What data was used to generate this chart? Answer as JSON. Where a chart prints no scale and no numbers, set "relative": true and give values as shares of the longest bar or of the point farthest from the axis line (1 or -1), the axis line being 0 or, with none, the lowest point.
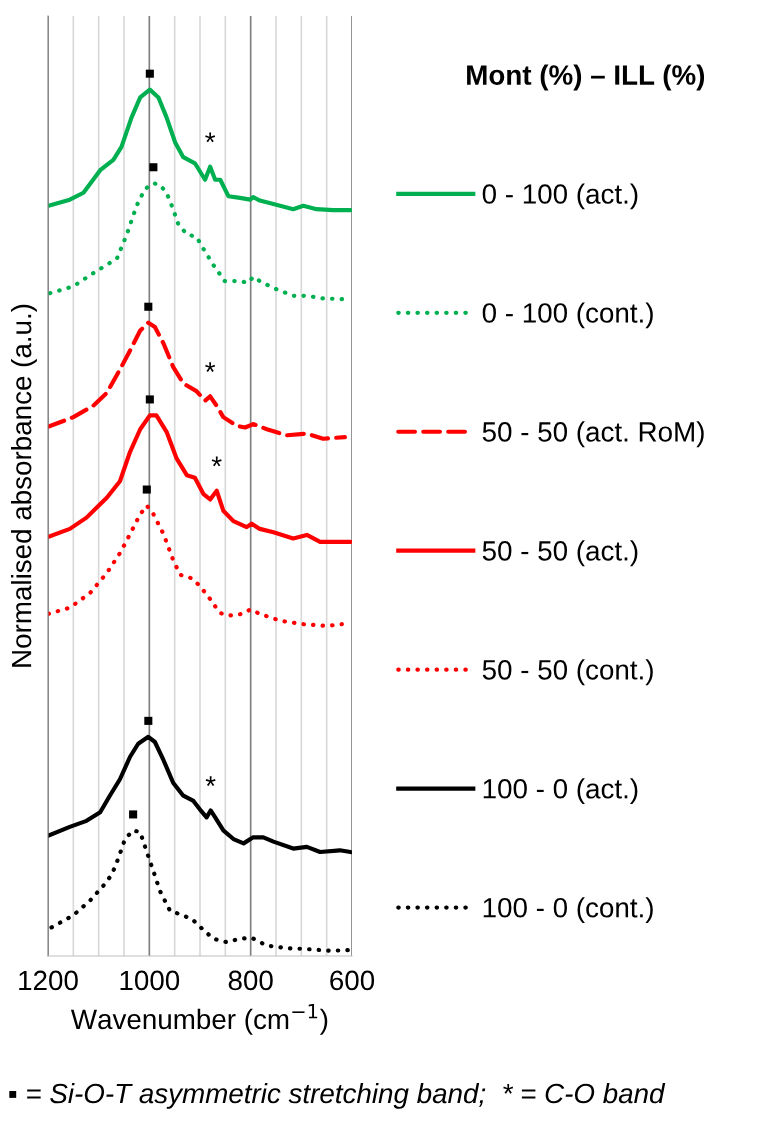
{
  "chart_data": {
    "type": "line",
    "relative": true,
    "xlabel": "Wavenumber (cm$^{−1}$)",
    "ylabel": "Normalised absorbance (a.u.)",
    "legend_title": "Mont (%) – ILL (%)",
    "legend": "right",
    "grid": "x",
    "xlim": [
      1200,
      600
    ],
    "xticks": [
      1200,
      {
        "value": 1150,
        "label": null
      },
      {
        "value": 1100,
        "label": null
      },
      {
        "value": 1050,
        "label": null
      },
      1000,
      {
        "value": 950,
        "label": null
      },
      {
        "value": 900,
        "label": null
      },
      {
        "value": 850,
        "label": null
      },
      800,
      {
        "value": 750,
        "label": null
      },
      {
        "value": 700,
        "label": null
      },
      {
        "value": 650,
        "label": null
      },
      600
    ],
    "series": [
      {
        "name": "0 - 100 (act.)",
        "color": "#00b050",
        "line_style": "solid",
        "x": [
          1199,
          1157,
          1130,
          1097,
          1071,
          1055,
          1035,
          1018,
          999,
          982,
          966,
          949,
          933,
          910,
          890,
          880,
          870,
          860,
          844,
          821,
          801,
          795,
          782,
          755,
          716,
          696,
          670,
          637,
          603
        ],
        "values": [
          0.866,
          0.873,
          0.881,
          0.907,
          0.919,
          0.934,
          0.968,
          0.991,
          1.0,
          0.991,
          0.968,
          0.939,
          0.922,
          0.915,
          0.896,
          0.911,
          0.896,
          0.896,
          0.877,
          0.875,
          0.873,
          0.876,
          0.872,
          0.868,
          0.862,
          0.866,
          0.862,
          0.861,
          0.861
        ]
      },
      {
        "name": "0 - 100 (cont.)",
        "color": "#00b050",
        "line_style": "dotted",
        "x": [
          1196,
          1150,
          1111,
          1064,
          1045,
          1025,
          1009,
          992,
          979,
          966,
          953,
          943,
          926,
          907,
          893,
          874,
          851,
          821,
          805,
          795,
          782,
          755,
          716,
          689,
          657,
          607
        ],
        "values": [
          0.765,
          0.773,
          0.788,
          0.805,
          0.832,
          0.866,
          0.885,
          0.892,
          0.89,
          0.881,
          0.862,
          0.845,
          0.833,
          0.83,
          0.816,
          0.798,
          0.779,
          0.779,
          0.777,
          0.784,
          0.779,
          0.771,
          0.762,
          0.762,
          0.759,
          0.758
        ]
      },
      {
        "name": "50 - 50 (act. RoM)",
        "color": "#ff0000",
        "line_style": "dashed",
        "x": [
          1199,
          1150,
          1111,
          1084,
          1058,
          1038,
          1018,
          1002,
          989,
          972,
          953,
          933,
          907,
          890,
          880,
          867,
          854,
          828,
          811,
          795,
          768,
          729,
          689,
          657,
          614
        ],
        "values": [
          0.611,
          0.622,
          0.635,
          0.65,
          0.677,
          0.699,
          0.722,
          0.731,
          0.726,
          0.707,
          0.68,
          0.661,
          0.652,
          0.641,
          0.646,
          0.635,
          0.622,
          0.612,
          0.61,
          0.614,
          0.608,
          0.601,
          0.603,
          0.597,
          0.599
        ]
      },
      {
        "name": "50 - 50 (act.)",
        "color": "#ff0000",
        "line_style": "solid",
        "x": [
          1199,
          1157,
          1124,
          1084,
          1058,
          1038,
          1018,
          999,
          986,
          966,
          946,
          926,
          910,
          893,
          880,
          867,
          854,
          834,
          808,
          798,
          782,
          755,
          716,
          689,
          663,
          603
        ],
        "values": [
          0.484,
          0.493,
          0.506,
          0.529,
          0.548,
          0.582,
          0.608,
          0.624,
          0.624,
          0.605,
          0.574,
          0.555,
          0.552,
          0.533,
          0.527,
          0.537,
          0.514,
          0.502,
          0.495,
          0.499,
          0.493,
          0.489,
          0.482,
          0.486,
          0.478,
          0.478
        ]
      },
      {
        "name": "50 - 50 (cont.)",
        "color": "#ff0000",
        "line_style": "dotted",
        "x": [
          1199,
          1157,
          1117,
          1084,
          1058,
          1038,
          1018,
          1005,
          992,
          972,
          953,
          939,
          916,
          900,
          880,
          861,
          841,
          814,
          801,
          782,
          742,
          696,
          650,
          620
        ],
        "values": [
          0.395,
          0.402,
          0.419,
          0.442,
          0.465,
          0.487,
          0.51,
          0.52,
          0.51,
          0.487,
          0.457,
          0.44,
          0.436,
          0.427,
          0.412,
          0.396,
          0.393,
          0.395,
          0.4,
          0.395,
          0.387,
          0.383,
          0.381,
          0.383
        ]
      },
      {
        "name": "100 - 0 (act.)",
        "color": "#000000",
        "line_style": "solid",
        "x": [
          1199,
          1157,
          1124,
          1097,
          1078,
          1058,
          1038,
          1022,
          1002,
          989,
          972,
          953,
          933,
          913,
          900,
          887,
          879,
          870,
          854,
          834,
          814,
          795,
          775,
          755,
          716,
          689,
          663,
          624,
          603
        ],
        "values": [
          0.139,
          0.149,
          0.156,
          0.166,
          0.185,
          0.204,
          0.23,
          0.245,
          0.253,
          0.247,
          0.226,
          0.2,
          0.185,
          0.179,
          0.169,
          0.16,
          0.168,
          0.16,
          0.145,
          0.135,
          0.13,
          0.137,
          0.137,
          0.132,
          0.124,
          0.126,
          0.12,
          0.122,
          0.12
        ]
      },
      {
        "name": "100 - 0 (cont.)",
        "color": "#000000",
        "line_style": "dotted",
        "x": [
          1193,
          1150,
          1117,
          1091,
          1074,
          1061,
          1048,
          1032,
          1018,
          1005,
          992,
          979,
          959,
          933,
          913,
          893,
          874,
          847,
          821,
          798,
          768,
          729,
          689,
          643,
          603
        ],
        "values": [
          0.033,
          0.047,
          0.064,
          0.081,
          0.094,
          0.113,
          0.135,
          0.145,
          0.143,
          0.12,
          0.098,
          0.075,
          0.052,
          0.047,
          0.041,
          0.03,
          0.02,
          0.016,
          0.02,
          0.021,
          0.012,
          0.009,
          0.008,
          0.006,
          0.007
        ]
      }
    ],
    "annotations": [
      {
        "text": "■",
        "x": 999,
        "y": 1.0
      },
      {
        "text": "*",
        "x": 880,
        "y": 0.911
      },
      {
        "text": "■",
        "x": 992,
        "y": 0.892
      },
      {
        "text": "■",
        "x": 1002,
        "y": 0.731
      },
      {
        "text": "*",
        "x": 880,
        "y": 0.646
      },
      {
        "text": "■",
        "x": 999,
        "y": 0.624
      },
      {
        "text": "*",
        "x": 867,
        "y": 0.537
      },
      {
        "text": "■",
        "x": 1005,
        "y": 0.52
      },
      {
        "text": "■",
        "x": 1002,
        "y": 0.253
      },
      {
        "text": "*",
        "x": 879,
        "y": 0.168
      },
      {
        "text": "■",
        "x": 1032,
        "y": 0.145
      },
      "▪ = Si-O-T asymmetric stretching band;  * = C-O band"
    ]
  }
}
